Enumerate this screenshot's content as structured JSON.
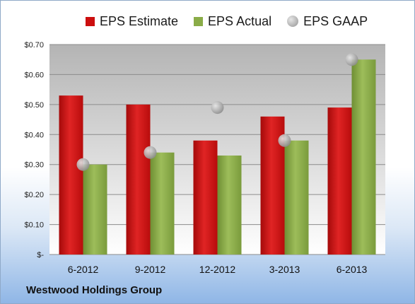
{
  "chart_data": {
    "type": "bar",
    "categories": [
      "6-2012",
      "9-2012",
      "12-2012",
      "3-2013",
      "6-2013"
    ],
    "series": [
      {
        "name": "EPS Estimate",
        "values": [
          0.53,
          0.5,
          0.38,
          0.46,
          0.49
        ],
        "color": "#cc0e0e",
        "style": "bar"
      },
      {
        "name": "EPS Actual",
        "values": [
          0.3,
          0.34,
          0.33,
          0.38,
          0.65
        ],
        "color": "#8aac48",
        "style": "bar"
      },
      {
        "name": "EPS GAAP",
        "values": [
          0.3,
          0.34,
          0.49,
          0.38,
          0.65
        ],
        "color": "#b0b0b0",
        "style": "marker"
      }
    ],
    "ylim": [
      0,
      0.7
    ],
    "yticks": [
      0,
      0.1,
      0.2,
      0.3,
      0.4,
      0.5,
      0.6,
      0.7
    ],
    "ytick_labels": [
      "$-",
      "$0.10",
      "$0.20",
      "$0.30",
      "$0.40",
      "$0.50",
      "$0.60",
      "$0.70"
    ],
    "grid": true,
    "legend_position": "top"
  },
  "footer": {
    "company": "Westwood Holdings Group"
  }
}
